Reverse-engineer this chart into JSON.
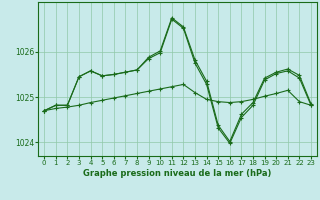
{
  "x": [
    0,
    1,
    2,
    3,
    4,
    5,
    6,
    7,
    8,
    9,
    10,
    11,
    12,
    13,
    14,
    15,
    16,
    17,
    18,
    19,
    20,
    21,
    22,
    23
  ],
  "series_trend": [
    1024.7,
    1024.75,
    1024.78,
    1024.82,
    1024.88,
    1024.93,
    1024.98,
    1025.03,
    1025.08,
    1025.13,
    1025.18,
    1025.23,
    1025.28,
    1025.1,
    1024.95,
    1024.9,
    1024.88,
    1024.9,
    1024.95,
    1025.02,
    1025.08,
    1025.15,
    1024.9,
    1024.82
  ],
  "series_high": [
    1024.7,
    1024.82,
    1024.82,
    1025.45,
    1025.58,
    1025.47,
    1025.5,
    1025.55,
    1025.6,
    1025.88,
    1026.02,
    1026.75,
    1026.55,
    1025.82,
    1025.35,
    1024.38,
    1024.02,
    1024.62,
    1024.88,
    1025.42,
    1025.55,
    1025.62,
    1025.48,
    1024.85
  ],
  "series_low": [
    1024.7,
    1024.82,
    1024.82,
    1025.45,
    1025.58,
    1025.47,
    1025.5,
    1025.55,
    1025.6,
    1025.85,
    1025.98,
    1026.72,
    1026.52,
    1025.75,
    1025.28,
    1024.32,
    1023.98,
    1024.55,
    1024.82,
    1025.38,
    1025.52,
    1025.58,
    1025.42,
    1024.82
  ],
  "line_color": "#1a6b1a",
  "bg_color": "#c8eaea",
  "grid_color": "#90c8a8",
  "xlabel": "Graphe pression niveau de la mer (hPa)",
  "ylim": [
    1023.7,
    1027.1
  ],
  "yticks": [
    1024,
    1025,
    1026
  ],
  "xticks": [
    0,
    1,
    2,
    3,
    4,
    5,
    6,
    7,
    8,
    9,
    10,
    11,
    12,
    13,
    14,
    15,
    16,
    17,
    18,
    19,
    20,
    21,
    22,
    23
  ],
  "marker": "+",
  "linewidth": 0.8,
  "markersize": 3.5,
  "markeredgewidth": 0.8
}
